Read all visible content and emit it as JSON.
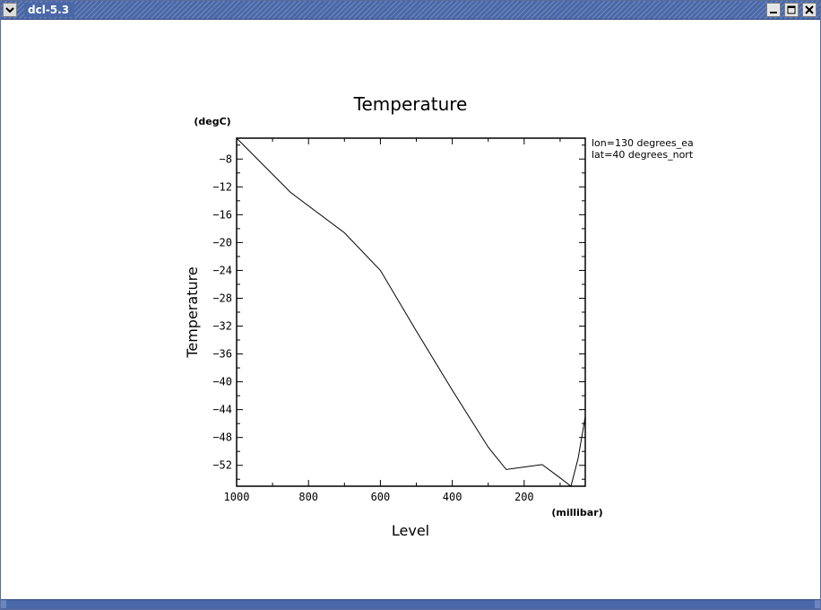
{
  "window": {
    "title": "dcl-5.3",
    "icons": {
      "menu": "chevron-down-icon",
      "minimize": "minimize-icon",
      "maximize": "maximize-icon",
      "close": "close-icon"
    }
  },
  "chart_data": {
    "type": "line",
    "title": "Temperature",
    "xlabel": "Level",
    "xunit": "(millibar)",
    "ylabel": "Temperature",
    "yunit": "(degC)",
    "xlim": [
      1000,
      30
    ],
    "ylim": [
      -55,
      -5
    ],
    "xticks": [
      1000,
      800,
      600,
      400,
      200
    ],
    "yticks": [
      -8,
      -12,
      -16,
      -20,
      -24,
      -28,
      -32,
      -36,
      -40,
      -44,
      -48,
      -52
    ],
    "annotations": [
      "lon=130 degrees_ea",
      "lat=40 degrees_nort"
    ],
    "grid": false,
    "series": [
      {
        "x": [
          1000,
          850,
          700,
          600,
          500,
          400,
          300,
          250,
          150,
          100,
          70,
          50,
          30
        ],
        "y": [
          -5.0,
          -12.8,
          -18.6,
          -24.0,
          -32.7,
          -41.2,
          -49.4,
          -52.6,
          -51.9,
          -53.8,
          -55.0,
          -51.0,
          -45.0
        ]
      }
    ]
  }
}
